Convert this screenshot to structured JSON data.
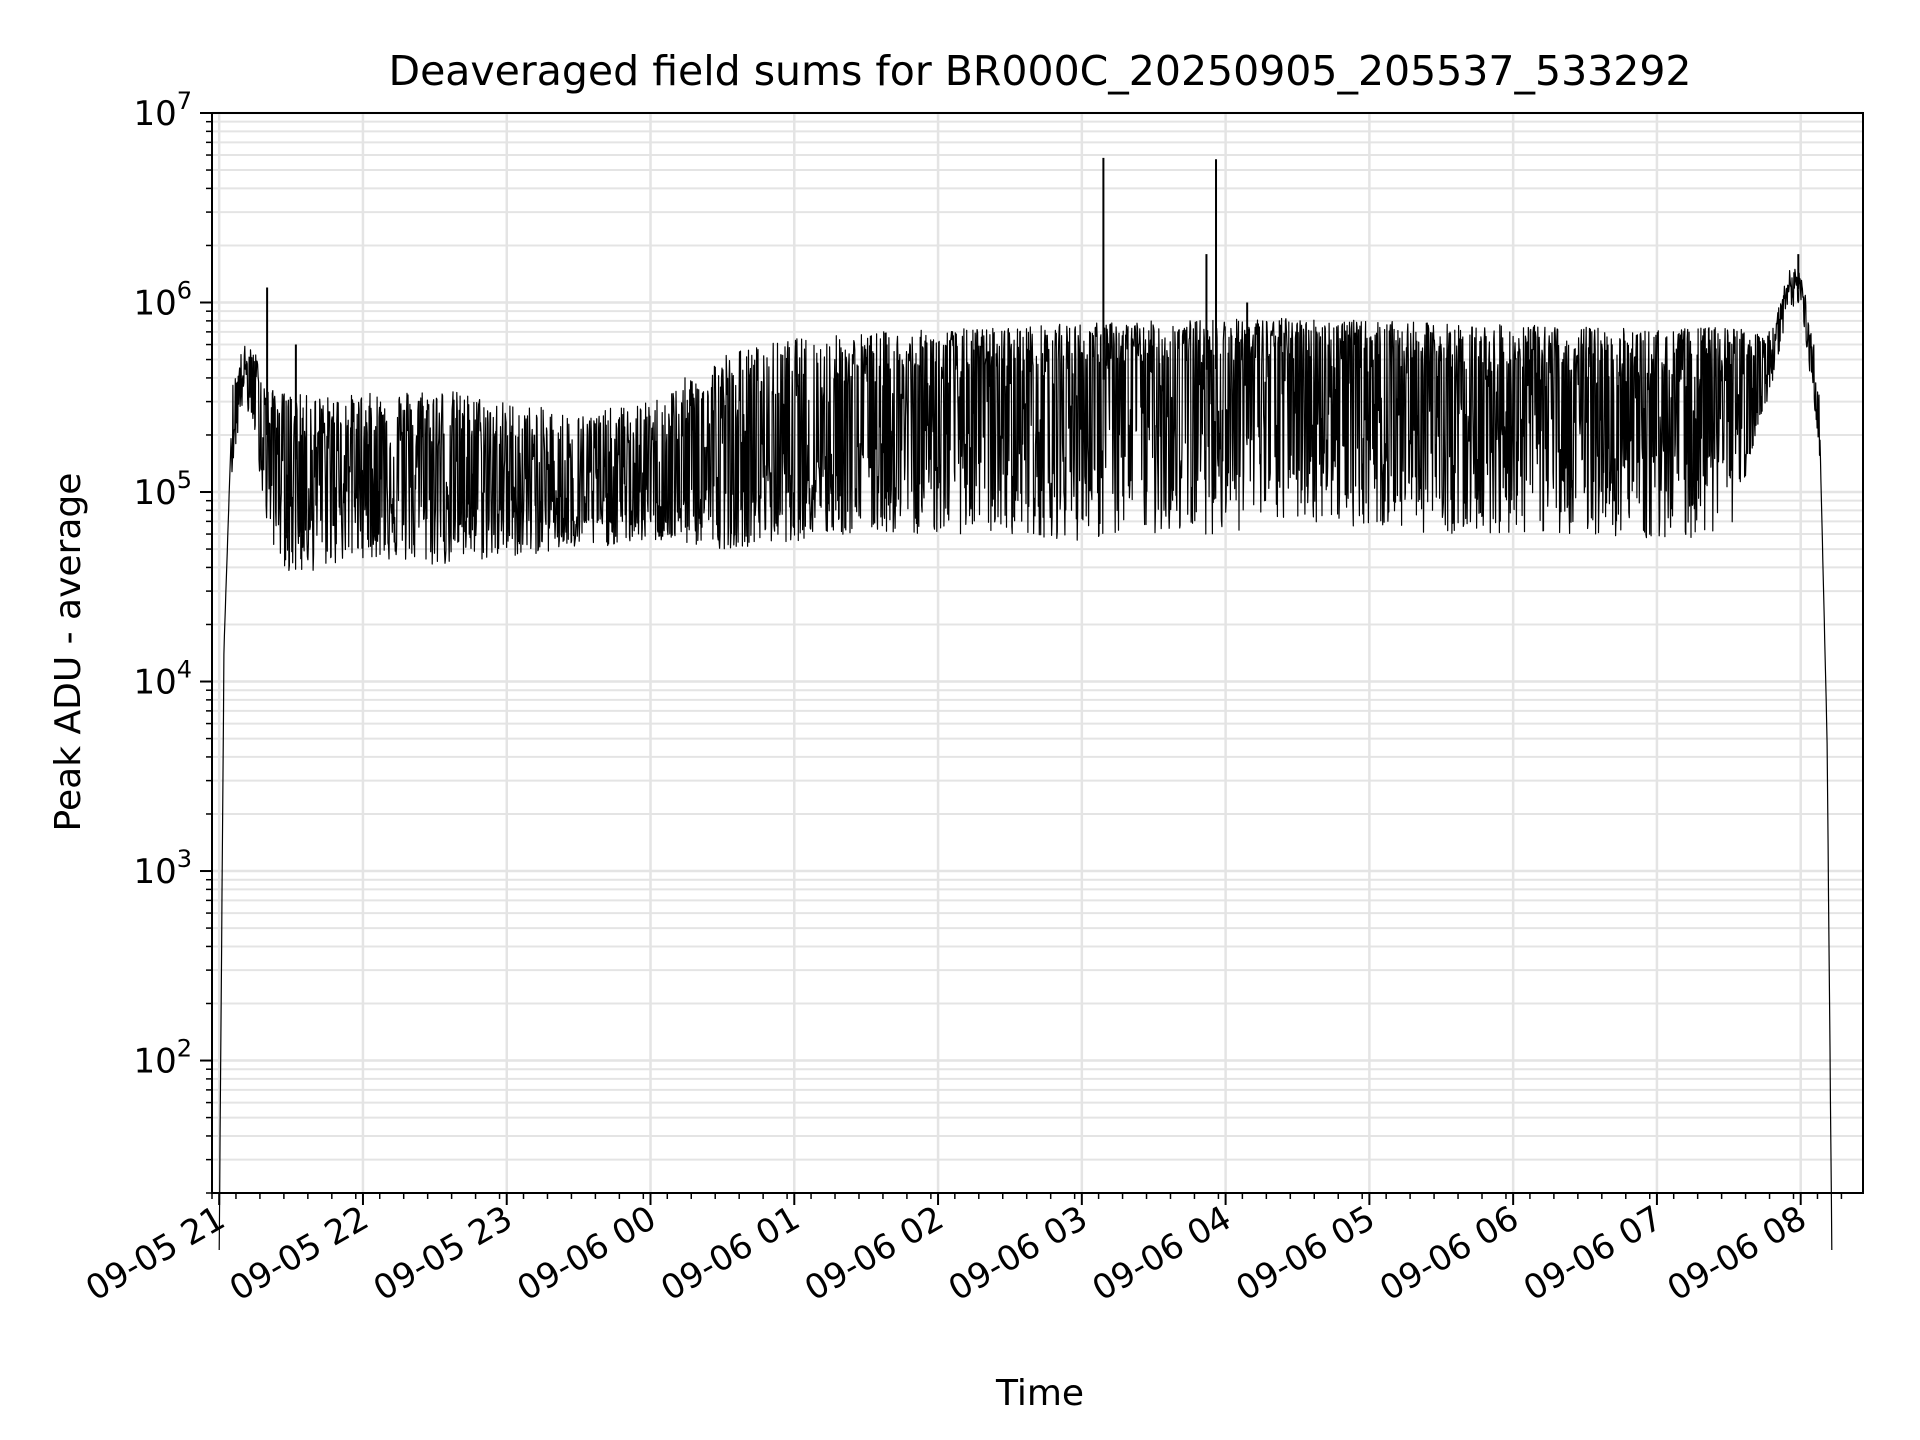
{
  "chart_data": {
    "type": "line",
    "title": "Deaveraged field sums for BR000C_20250905_205537_533292",
    "xlabel": "Time",
    "ylabel": "Peak ADU - average",
    "yscale": "log",
    "ylim": [
      20,
      10000000
    ],
    "xlim": [
      "2025-09-05 20:57",
      "2025-09-06 08:26"
    ],
    "grid": true,
    "x_ticks": [
      "09-05 21",
      "09-05 22",
      "09-05 23",
      "09-06 00",
      "09-06 01",
      "09-06 02",
      "09-06 03",
      "09-06 04",
      "09-06 05",
      "09-06 06",
      "09-06 07",
      "09-06 08"
    ],
    "y_ticks": [
      {
        "value": 100,
        "base": "10",
        "exp": "2"
      },
      {
        "value": 1000,
        "base": "10",
        "exp": "3"
      },
      {
        "value": 10000,
        "base": "10",
        "exp": "4"
      },
      {
        "value": 100000,
        "base": "10",
        "exp": "5"
      },
      {
        "value": 1000000,
        "base": "10",
        "exp": "6"
      },
      {
        "value": 10000000,
        "base": "10",
        "exp": "7"
      }
    ],
    "series": [
      {
        "color": "#000000",
        "style": "noisy trace, approximate envelope",
        "points": [
          {
            "t": "2025-09-05 21:00",
            "median": 10,
            "low": 10,
            "high": 10
          },
          {
            "t": "2025-09-05 21:02",
            "median": 15000,
            "low": 5000,
            "high": 40000
          },
          {
            "t": "2025-09-05 21:05",
            "median": 200000,
            "low": 120000,
            "high": 350000
          },
          {
            "t": "2025-09-05 21:10",
            "median": 450000,
            "low": 300000,
            "high": 600000
          },
          {
            "t": "2025-09-05 21:15",
            "median": 350000,
            "low": 200000,
            "high": 550000
          },
          {
            "t": "2025-09-05 21:20",
            "median": 200000,
            "low": 60000,
            "high": 350000
          },
          {
            "t": "2025-09-05 21:30",
            "median": 150000,
            "low": 35000,
            "high": 330000
          },
          {
            "t": "2025-09-05 21:45",
            "median": 140000,
            "low": 40000,
            "high": 320000
          },
          {
            "t": "2025-09-05 22:00",
            "median": 140000,
            "low": 45000,
            "high": 330000
          },
          {
            "t": "2025-09-05 22:30",
            "median": 135000,
            "low": 40000,
            "high": 360000
          },
          {
            "t": "2025-09-05 23:00",
            "median": 110000,
            "low": 45000,
            "high": 300000
          },
          {
            "t": "2025-09-05 23:30",
            "median": 95000,
            "low": 50000,
            "high": 260000
          },
          {
            "t": "2025-09-06 00:00",
            "median": 110000,
            "low": 55000,
            "high": 300000
          },
          {
            "t": "2025-09-06 00:30",
            "median": 130000,
            "low": 50000,
            "high": 550000
          },
          {
            "t": "2025-09-06 01:00",
            "median": 170000,
            "low": 55000,
            "high": 650000
          },
          {
            "t": "2025-09-06 01:30",
            "median": 230000,
            "low": 60000,
            "high": 700000
          },
          {
            "t": "2025-09-06 02:00",
            "median": 280000,
            "low": 60000,
            "high": 720000
          },
          {
            "t": "2025-09-06 02:30",
            "median": 330000,
            "low": 60000,
            "high": 750000
          },
          {
            "t": "2025-09-06 03:00",
            "median": 380000,
            "low": 55000,
            "high": 780000
          },
          {
            "t": "2025-09-06 03:30",
            "median": 420000,
            "low": 60000,
            "high": 800000
          },
          {
            "t": "2025-09-06 04:00",
            "median": 450000,
            "low": 60000,
            "high": 820000
          },
          {
            "t": "2025-09-06 04:30",
            "median": 470000,
            "low": 70000,
            "high": 830000
          },
          {
            "t": "2025-09-06 05:00",
            "median": 420000,
            "low": 65000,
            "high": 800000
          },
          {
            "t": "2025-09-06 05:30",
            "median": 350000,
            "low": 60000,
            "high": 780000
          },
          {
            "t": "2025-09-06 06:00",
            "median": 320000,
            "low": 60000,
            "high": 760000
          },
          {
            "t": "2025-09-06 06:30",
            "median": 300000,
            "low": 60000,
            "high": 750000
          },
          {
            "t": "2025-09-06 07:00",
            "median": 290000,
            "low": 55000,
            "high": 720000
          },
          {
            "t": "2025-09-06 07:30",
            "median": 320000,
            "low": 60000,
            "high": 750000
          },
          {
            "t": "2025-09-06 07:48",
            "median": 500000,
            "low": 350000,
            "high": 700000
          },
          {
            "t": "2025-09-06 07:55",
            "median": 1100000,
            "low": 900000,
            "high": 1500000
          },
          {
            "t": "2025-09-06 08:00",
            "median": 1200000,
            "low": 1000000,
            "high": 1500000
          },
          {
            "t": "2025-09-06 08:05",
            "median": 500000,
            "low": 300000,
            "high": 700000
          },
          {
            "t": "2025-09-06 08:08",
            "median": 200000,
            "low": 150000,
            "high": 300000
          },
          {
            "t": "2025-09-06 08:11",
            "median": 5000,
            "low": 2000,
            "high": 10000
          },
          {
            "t": "2025-09-06 08:13",
            "median": 10,
            "low": 10,
            "high": 10
          }
        ],
        "spikes": [
          {
            "t": "2025-09-05 21:20",
            "value": 1200000
          },
          {
            "t": "2025-09-05 21:32",
            "value": 600000
          },
          {
            "t": "2025-09-06 03:09",
            "value": 5800000
          },
          {
            "t": "2025-09-06 03:52",
            "value": 1800000
          },
          {
            "t": "2025-09-06 03:56",
            "value": 5700000
          },
          {
            "t": "2025-09-06 04:09",
            "value": 1000000
          },
          {
            "t": "2025-09-06 07:59",
            "value": 1800000
          }
        ]
      }
    ]
  }
}
